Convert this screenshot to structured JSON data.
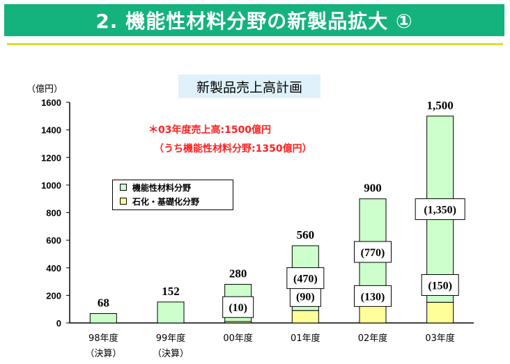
{
  "header": {
    "title": "2. 機能性材料分野の新製品拡大 ①",
    "accent_color": "#14b27c",
    "underline_color": "#d9dd2c"
  },
  "note": {
    "line1": "＊03年度売上高:1500億円",
    "line2": "（うち機能性材料分野:1350億円）",
    "color": "#ff2020"
  },
  "chart_data": {
    "type": "bar",
    "stacked": true,
    "title": "新製品売上高計画",
    "ylabel": "（億円）",
    "ylim": [
      0,
      1600
    ],
    "yticks": [
      0,
      200,
      400,
      600,
      800,
      1000,
      1200,
      1400,
      1600
    ],
    "categories": [
      "98年度",
      "99年度",
      "00年度",
      "01年度",
      "02年度",
      "03年度"
    ],
    "category_sublabels": [
      "（決算）",
      "（決算）",
      "",
      "",
      "",
      ""
    ],
    "series": [
      {
        "name": "石化・基礎化分野",
        "color": "#ffff99",
        "values": [
          0,
          0,
          10,
          90,
          130,
          150
        ]
      },
      {
        "name": "機能性材料分野",
        "color": "#ccffcc",
        "values": [
          68,
          152,
          270,
          470,
          770,
          1350
        ]
      }
    ],
    "total_labels": [
      "68",
      "152",
      "280",
      "560",
      "900",
      "1,500"
    ],
    "segment_labels": {
      "石化・基礎化分野": [
        "",
        "",
        "(10)",
        "(90)",
        "(130)",
        "(150)"
      ],
      "機能性材料分野": [
        "",
        "",
        "",
        "(470)",
        "(770)",
        "(1,350)"
      ]
    },
    "legend_position": "inside-left"
  }
}
